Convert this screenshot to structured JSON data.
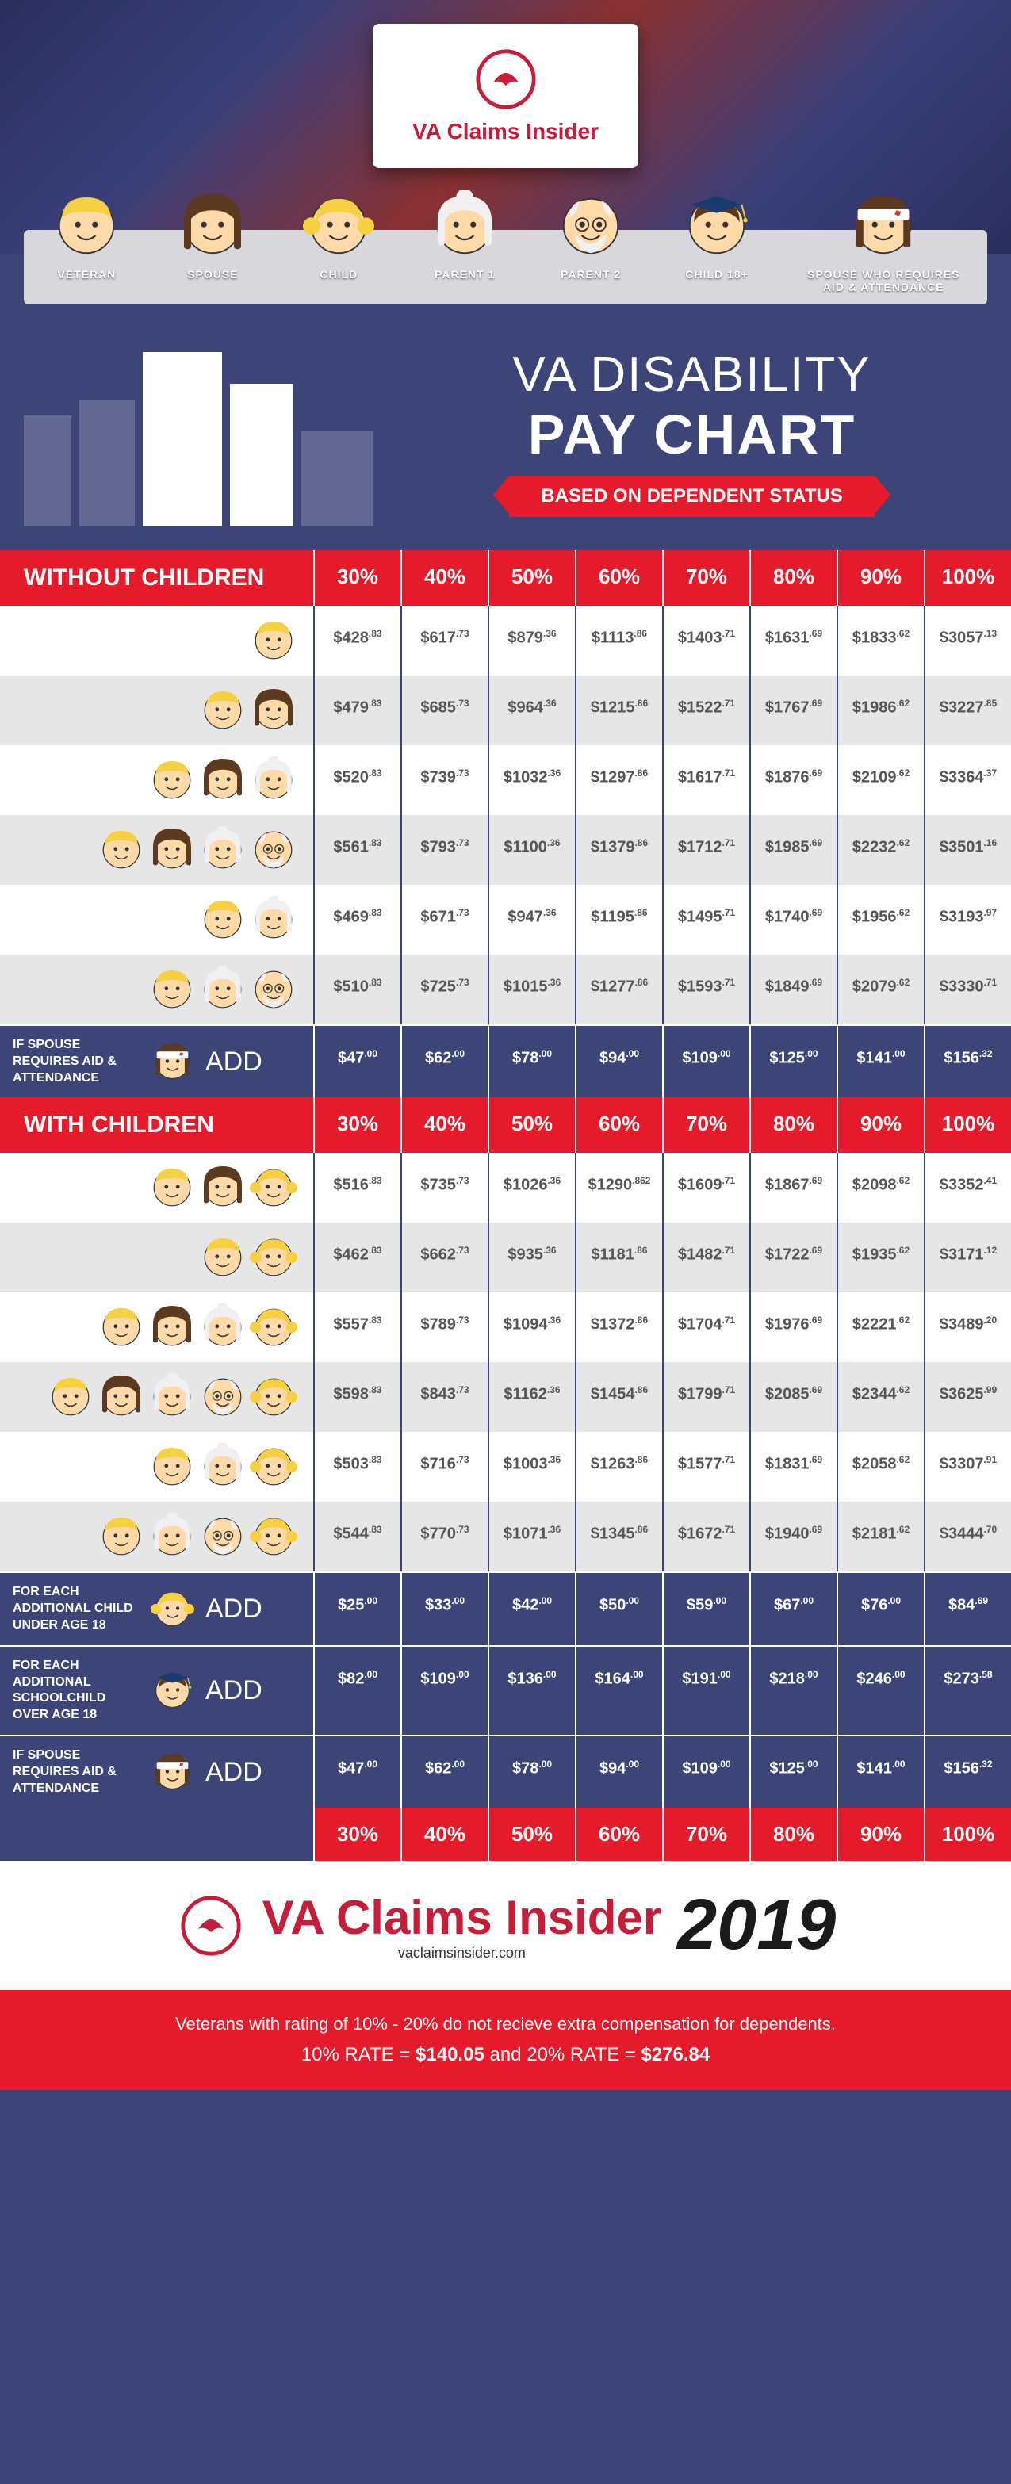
{
  "colors": {
    "red": "#e51a2b",
    "navy": "#3c4478",
    "brand_red": "#c41e3a",
    "row_alt": "#e6e6e6",
    "row": "#ffffff",
    "text_gray": "#555555",
    "legend_bg": "#d8d8dc"
  },
  "brand": {
    "name": "VA Claims Insider",
    "url": "vaclaimsinsider.com",
    "year": "2019"
  },
  "legend": [
    {
      "key": "veteran",
      "label": "VETERAN"
    },
    {
      "key": "spouse",
      "label": "SPOUSE"
    },
    {
      "key": "child",
      "label": "CHILD"
    },
    {
      "key": "parent1",
      "label": "PARENT 1"
    },
    {
      "key": "parent2",
      "label": "PARENT 2"
    },
    {
      "key": "child18",
      "label": "CHILD 18+"
    },
    {
      "key": "spouse_aid",
      "label": "SPOUSE WHO REQUIRES\nAID & ATTENDANCE"
    }
  ],
  "title": {
    "line1": "VA DISABILITY",
    "line2": "PAY CHART",
    "ribbon": "BASED ON DEPENDENT STATUS"
  },
  "percent_headers": [
    "30%",
    "40%",
    "50%",
    "60%",
    "70%",
    "80%",
    "90%",
    "100%"
  ],
  "sections": {
    "without": {
      "label": "WITHOUT CHILDREN",
      "rows": [
        {
          "faces": [
            "veteran"
          ],
          "values": [
            [
              "$428",
              ".83"
            ],
            [
              "$617",
              ".73"
            ],
            [
              "$879",
              ".36"
            ],
            [
              "$1113",
              ".86"
            ],
            [
              "$1403",
              ".71"
            ],
            [
              "$1631",
              ".69"
            ],
            [
              "$1833",
              ".62"
            ],
            [
              "$3057",
              ".13"
            ]
          ]
        },
        {
          "faces": [
            "veteran",
            "spouse"
          ],
          "values": [
            [
              "$479",
              ".83"
            ],
            [
              "$685",
              ".73"
            ],
            [
              "$964",
              ".36"
            ],
            [
              "$1215",
              ".86"
            ],
            [
              "$1522",
              ".71"
            ],
            [
              "$1767",
              ".69"
            ],
            [
              "$1986",
              ".62"
            ],
            [
              "$3227",
              ".85"
            ]
          ]
        },
        {
          "faces": [
            "veteran",
            "spouse",
            "parent1"
          ],
          "values": [
            [
              "$520",
              ".83"
            ],
            [
              "$739",
              ".73"
            ],
            [
              "$1032",
              ".36"
            ],
            [
              "$1297",
              ".86"
            ],
            [
              "$1617",
              ".71"
            ],
            [
              "$1876",
              ".69"
            ],
            [
              "$2109",
              ".62"
            ],
            [
              "$3364",
              ".37"
            ]
          ]
        },
        {
          "faces": [
            "veteran",
            "spouse",
            "parent1",
            "parent2"
          ],
          "values": [
            [
              "$561",
              ".83"
            ],
            [
              "$793",
              ".73"
            ],
            [
              "$1100",
              ".36"
            ],
            [
              "$1379",
              ".86"
            ],
            [
              "$1712",
              ".71"
            ],
            [
              "$1985",
              ".69"
            ],
            [
              "$2232",
              ".62"
            ],
            [
              "$3501",
              ".16"
            ]
          ]
        },
        {
          "faces": [
            "veteran",
            "parent1"
          ],
          "values": [
            [
              "$469",
              ".83"
            ],
            [
              "$671",
              ".73"
            ],
            [
              "$947",
              ".36"
            ],
            [
              "$1195",
              ".86"
            ],
            [
              "$1495",
              ".71"
            ],
            [
              "$1740",
              ".69"
            ],
            [
              "$1956",
              ".62"
            ],
            [
              "$3193",
              ".97"
            ]
          ]
        },
        {
          "faces": [
            "veteran",
            "parent1",
            "parent2"
          ],
          "values": [
            [
              "$510",
              ".83"
            ],
            [
              "$725",
              ".73"
            ],
            [
              "$1015",
              ".36"
            ],
            [
              "$1277",
              ".86"
            ],
            [
              "$1593",
              ".71"
            ],
            [
              "$1849",
              ".69"
            ],
            [
              "$2079",
              ".62"
            ],
            [
              "$3330",
              ".71"
            ]
          ]
        }
      ],
      "add_rows": [
        {
          "text": "IF SPOUSE REQUIRES AID & ATTENDANCE",
          "face": "spouse_aid",
          "add": "ADD",
          "values": [
            [
              "$47",
              ".00"
            ],
            [
              "$62",
              ".00"
            ],
            [
              "$78",
              ".00"
            ],
            [
              "$94",
              ".00"
            ],
            [
              "$109",
              ".00"
            ],
            [
              "$125",
              ".00"
            ],
            [
              "$141",
              ".00"
            ],
            [
              "$156",
              ".32"
            ]
          ]
        }
      ]
    },
    "with": {
      "label": "WITH CHILDREN",
      "rows": [
        {
          "faces": [
            "veteran",
            "spouse",
            "child"
          ],
          "values": [
            [
              "$516",
              ".83"
            ],
            [
              "$735",
              ".73"
            ],
            [
              "$1026",
              ".36"
            ],
            [
              "$1290",
              ".862"
            ],
            [
              "$1609",
              ".71"
            ],
            [
              "$1867",
              ".69"
            ],
            [
              "$2098",
              ".62"
            ],
            [
              "$3352",
              ".41"
            ]
          ]
        },
        {
          "faces": [
            "veteran",
            "child"
          ],
          "values": [
            [
              "$462",
              ".83"
            ],
            [
              "$662",
              ".73"
            ],
            [
              "$935",
              ".36"
            ],
            [
              "$1181",
              ".86"
            ],
            [
              "$1482",
              ".71"
            ],
            [
              "$1722",
              ".69"
            ],
            [
              "$1935",
              ".62"
            ],
            [
              "$3171",
              ".12"
            ]
          ]
        },
        {
          "faces": [
            "veteran",
            "spouse",
            "parent1",
            "child"
          ],
          "values": [
            [
              "$557",
              ".83"
            ],
            [
              "$789",
              ".73"
            ],
            [
              "$1094",
              ".36"
            ],
            [
              "$1372",
              ".86"
            ],
            [
              "$1704",
              ".71"
            ],
            [
              "$1976",
              ".69"
            ],
            [
              "$2221",
              ".62"
            ],
            [
              "$3489",
              ".20"
            ]
          ]
        },
        {
          "faces": [
            "veteran",
            "spouse",
            "parent1",
            "parent2",
            "child"
          ],
          "values": [
            [
              "$598",
              ".83"
            ],
            [
              "$843",
              ".73"
            ],
            [
              "$1162",
              ".36"
            ],
            [
              "$1454",
              ".86"
            ],
            [
              "$1799",
              ".71"
            ],
            [
              "$2085",
              ".69"
            ],
            [
              "$2344",
              ".62"
            ],
            [
              "$3625",
              ".99"
            ]
          ]
        },
        {
          "faces": [
            "veteran",
            "parent1",
            "child"
          ],
          "values": [
            [
              "$503",
              ".83"
            ],
            [
              "$716",
              ".73"
            ],
            [
              "$1003",
              ".36"
            ],
            [
              "$1263",
              ".86"
            ],
            [
              "$1577",
              ".71"
            ],
            [
              "$1831",
              ".69"
            ],
            [
              "$2058",
              ".62"
            ],
            [
              "$3307",
              ".91"
            ]
          ]
        },
        {
          "faces": [
            "veteran",
            "parent1",
            "parent2",
            "child"
          ],
          "values": [
            [
              "$544",
              ".83"
            ],
            [
              "$770",
              ".73"
            ],
            [
              "$1071",
              ".36"
            ],
            [
              "$1345",
              ".86"
            ],
            [
              "$1672",
              ".71"
            ],
            [
              "$1940",
              ".69"
            ],
            [
              "$2181",
              ".62"
            ],
            [
              "$3444",
              ".70"
            ]
          ]
        }
      ],
      "add_rows": [
        {
          "text": "FOR EACH ADDITIONAL CHILD UNDER AGE 18",
          "face": "child",
          "add": "ADD",
          "values": [
            [
              "$25",
              ".00"
            ],
            [
              "$33",
              ".00"
            ],
            [
              "$42",
              ".00"
            ],
            [
              "$50",
              ".00"
            ],
            [
              "$59",
              ".00"
            ],
            [
              "$67",
              ".00"
            ],
            [
              "$76",
              ".00"
            ],
            [
              "$84",
              ".69"
            ]
          ]
        },
        {
          "text": "FOR EACH ADDITIONAL SCHOOLCHILD OVER AGE 18",
          "face": "child18",
          "add": "ADD",
          "values": [
            [
              "$82",
              ".00"
            ],
            [
              "$109",
              ".00"
            ],
            [
              "$136",
              ".00"
            ],
            [
              "$164",
              ".00"
            ],
            [
              "$191",
              ".00"
            ],
            [
              "$218",
              ".00"
            ],
            [
              "$246",
              ".00"
            ],
            [
              "$273",
              ".58"
            ]
          ]
        },
        {
          "text": "IF SPOUSE REQUIRES AID & ATTENDANCE",
          "face": "spouse_aid",
          "add": "ADD",
          "values": [
            [
              "$47",
              ".00"
            ],
            [
              "$62",
              ".00"
            ],
            [
              "$78",
              ".00"
            ],
            [
              "$94",
              ".00"
            ],
            [
              "$109",
              ".00"
            ],
            [
              "$125",
              ".00"
            ],
            [
              "$141",
              ".00"
            ],
            [
              "$156",
              ".32"
            ]
          ]
        }
      ]
    }
  },
  "footer": {
    "note": "Veterans with rating of 10% - 20% do not recieve extra compensation for dependents.",
    "rate_prefix": "10% RATE = ",
    "rate_10": "$140.05",
    "rate_mid": " and ",
    "rate_20_prefix": "20% RATE = ",
    "rate_20": "$276.84"
  },
  "face_styles": {
    "veteran": {
      "skin": "#ffd9a8",
      "hair": "#f5d040",
      "hair_style": "short"
    },
    "spouse": {
      "skin": "#ffd9a8",
      "hair": "#5b3a20",
      "hair_style": "long"
    },
    "child": {
      "skin": "#ffd9a8",
      "hair": "#f5d040",
      "hair_style": "pigtails"
    },
    "parent1": {
      "skin": "#ffd9a8",
      "hair": "#f0f0f0",
      "hair_style": "bun"
    },
    "parent2": {
      "skin": "#ffd9a8",
      "hair": "#f0f0f0",
      "hair_style": "bald_beard"
    },
    "child18": {
      "skin": "#ffd9a8",
      "hair": "#5b3a20",
      "hair_style": "grad_cap"
    },
    "spouse_aid": {
      "skin": "#ffd9a8",
      "hair": "#5b3a20",
      "hair_style": "bandage"
    }
  }
}
